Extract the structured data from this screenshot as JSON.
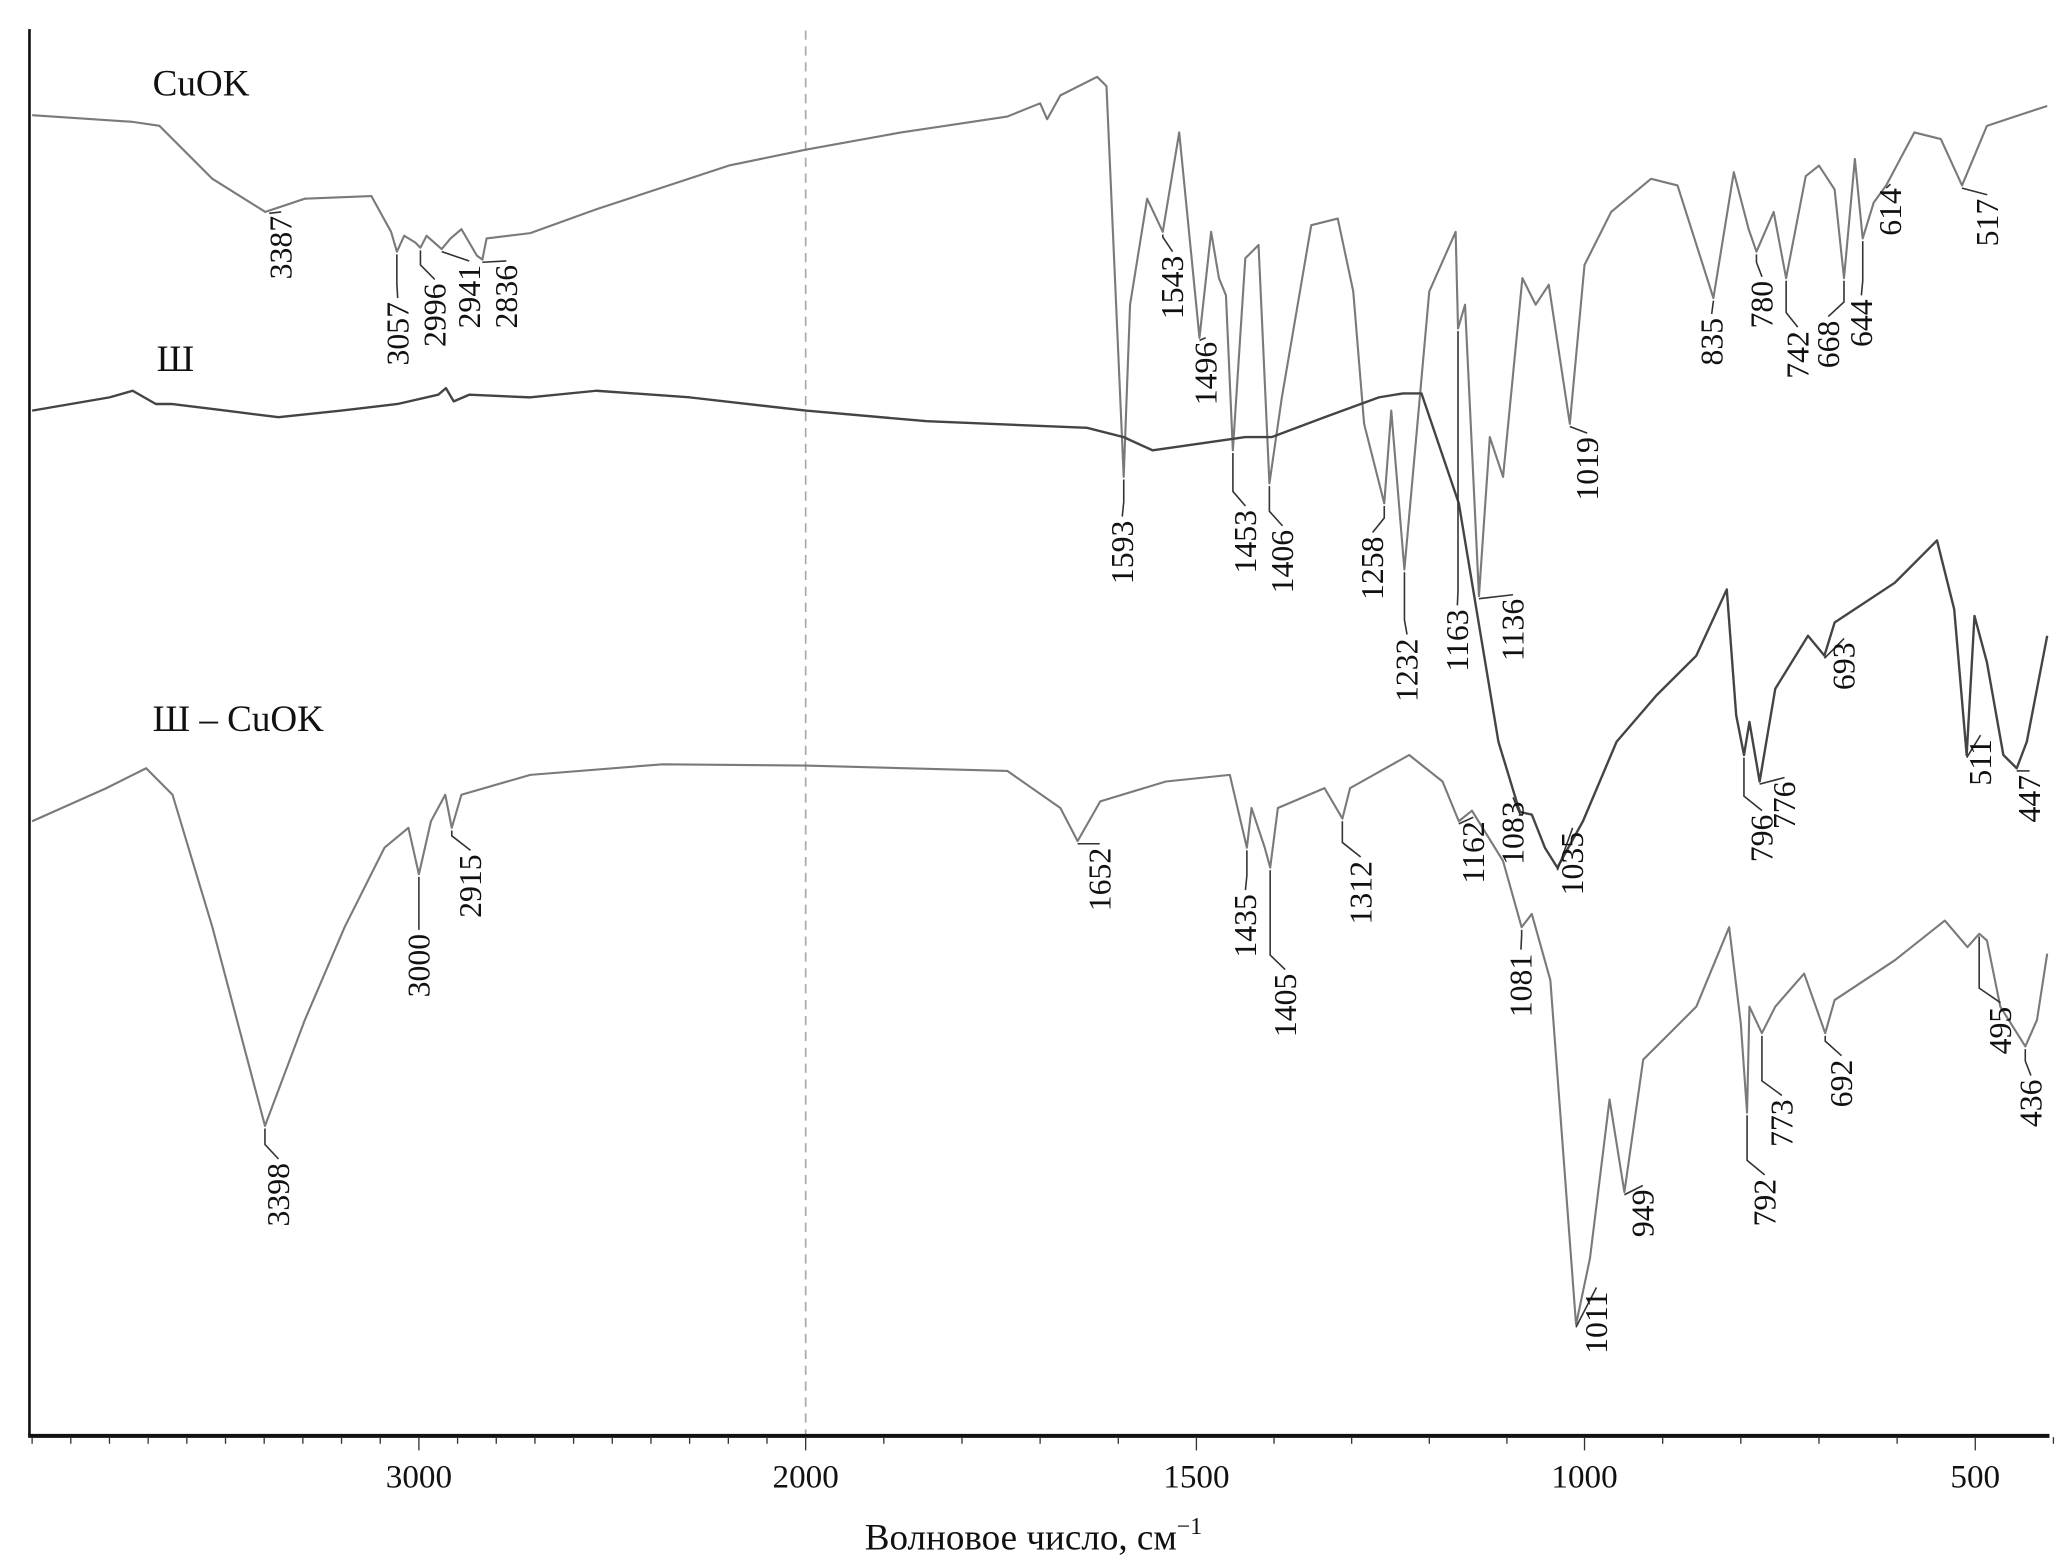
{
  "chart_data": {
    "type": "line",
    "title": "",
    "xlabel": "Волновое число, см",
    "xlabel_sup": "−1",
    "ylabel": "",
    "xlim": [
      4000,
      400
    ],
    "ylim": [
      0,
      106
    ],
    "x_scale": "split at 2000 cm-1 (expanded below 2000)",
    "grid": false,
    "reference_line": 2000,
    "xticks": [
      3000,
      2000,
      1500,
      1000,
      500
    ],
    "xtick_labels": [
      "3000",
      "2000",
      "1500",
      "1000",
      "500"
    ],
    "series": [
      {
        "name": "CuOK",
        "color": "#7a7a7a",
        "points": [
          [
            4000,
            99.6
          ],
          [
            3740,
            99.1
          ],
          [
            3671,
            98.8
          ],
          [
            3534,
            94.8
          ],
          [
            3397,
            92.3
          ],
          [
            3295,
            93.3
          ],
          [
            3123,
            93.5
          ],
          [
            3072,
            90.8
          ],
          [
            3057,
            89.3
          ],
          [
            3038,
            90.5
          ],
          [
            3010,
            90.0
          ],
          [
            2996,
            89.6
          ],
          [
            2980,
            90.5
          ],
          [
            2941,
            89.5
          ],
          [
            2918,
            90.3
          ],
          [
            2890,
            91.0
          ],
          [
            2850,
            89.0
          ],
          [
            2836,
            88.7
          ],
          [
            2825,
            90.3
          ],
          [
            2712,
            90.7
          ],
          [
            2541,
            92.5
          ],
          [
            2199,
            95.8
          ],
          [
            2000,
            97.0
          ],
          [
            1878,
            98.3
          ],
          [
            1742,
            99.5
          ],
          [
            1700,
            100.5
          ],
          [
            1691,
            99.3
          ],
          [
            1674,
            101.1
          ],
          [
            1627,
            102.5
          ],
          [
            1615,
            101.8
          ],
          [
            1593,
            72.3
          ],
          [
            1585,
            85.3
          ],
          [
            1563,
            93.3
          ],
          [
            1543,
            90.8
          ],
          [
            1522,
            98.3
          ],
          [
            1496,
            82.8
          ],
          [
            1481,
            90.8
          ],
          [
            1471,
            87.3
          ],
          [
            1462,
            86.0
          ],
          [
            1453,
            74.3
          ],
          [
            1437,
            88.8
          ],
          [
            1420,
            89.8
          ],
          [
            1406,
            71.8
          ],
          [
            1390,
            78.3
          ],
          [
            1352,
            91.3
          ],
          [
            1318,
            91.8
          ],
          [
            1298,
            86.3
          ],
          [
            1284,
            76.3
          ],
          [
            1258,
            70.3
          ],
          [
            1249,
            77.3
          ],
          [
            1232,
            65.3
          ],
          [
            1200,
            86.3
          ],
          [
            1166,
            90.8
          ],
          [
            1163,
            83.5
          ],
          [
            1154,
            85.3
          ],
          [
            1136,
            63.3
          ],
          [
            1122,
            75.3
          ],
          [
            1105,
            72.3
          ],
          [
            1080,
            87.3
          ],
          [
            1063,
            85.3
          ],
          [
            1046,
            86.8
          ],
          [
            1019,
            76.3
          ],
          [
            1000,
            88.3
          ],
          [
            966,
            92.3
          ],
          [
            915,
            94.8
          ],
          [
            881,
            94.3
          ],
          [
            835,
            85.8
          ],
          [
            809,
            95.3
          ],
          [
            790,
            91.0
          ],
          [
            780,
            89.3
          ],
          [
            758,
            92.3
          ],
          [
            742,
            87.3
          ],
          [
            717,
            95.0
          ],
          [
            700,
            95.8
          ],
          [
            680,
            94.0
          ],
          [
            668,
            87.3
          ],
          [
            654,
            96.3
          ],
          [
            644,
            90.3
          ],
          [
            630,
            93.0
          ],
          [
            614,
            94.3
          ],
          [
            578,
            98.3
          ],
          [
            544,
            97.8
          ],
          [
            517,
            94.3
          ],
          [
            485,
            98.8
          ],
          [
            434,
            99.8
          ],
          [
            408,
            100.3
          ]
        ]
      },
      {
        "name": "Ш",
        "color": "#444444",
        "points": [
          [
            4000,
            77.3
          ],
          [
            3900,
            77.8
          ],
          [
            3800,
            78.3
          ],
          [
            3740,
            78.8
          ],
          [
            3680,
            77.8
          ],
          [
            3640,
            77.8
          ],
          [
            3500,
            77.3
          ],
          [
            3363,
            76.8
          ],
          [
            3200,
            77.3
          ],
          [
            3055,
            77.8
          ],
          [
            2950,
            78.5
          ],
          [
            2930,
            79.0
          ],
          [
            2910,
            78.0
          ],
          [
            2870,
            78.5
          ],
          [
            2712,
            78.3
          ],
          [
            2541,
            78.8
          ],
          [
            2300,
            78.3
          ],
          [
            2000,
            77.3
          ],
          [
            1845,
            76.5
          ],
          [
            1640,
            76.0
          ],
          [
            1593,
            75.3
          ],
          [
            1556,
            74.3
          ],
          [
            1437,
            75.3
          ],
          [
            1403,
            75.3
          ],
          [
            1335,
            76.8
          ],
          [
            1265,
            78.3
          ],
          [
            1234,
            78.6
          ],
          [
            1210,
            78.6
          ],
          [
            1162,
            70.3
          ],
          [
            1111,
            52.3
          ],
          [
            1085,
            47.3
          ],
          [
            1083,
            47.0
          ],
          [
            1068,
            46.8
          ],
          [
            1051,
            44.3
          ],
          [
            1035,
            42.8
          ],
          [
            1002,
            46.3
          ],
          [
            959,
            52.3
          ],
          [
            908,
            55.8
          ],
          [
            857,
            58.8
          ],
          [
            818,
            63.8
          ],
          [
            806,
            54.3
          ],
          [
            796,
            51.3
          ],
          [
            789,
            53.8
          ],
          [
            776,
            49.3
          ],
          [
            756,
            56.3
          ],
          [
            714,
            60.3
          ],
          [
            693,
            58.8
          ],
          [
            680,
            61.3
          ],
          [
            603,
            64.3
          ],
          [
            549,
            67.5
          ],
          [
            527,
            62.3
          ],
          [
            511,
            51.3
          ],
          [
            501,
            61.8
          ],
          [
            485,
            58.3
          ],
          [
            464,
            51.3
          ],
          [
            447,
            50.3
          ],
          [
            434,
            52.3
          ],
          [
            408,
            60.3
          ]
        ]
      },
      {
        "name": "Ш – CuOK",
        "color": "#7a7a7a",
        "points": [
          [
            4000,
            46.3
          ],
          [
            3808,
            48.8
          ],
          [
            3705,
            50.3
          ],
          [
            3637,
            48.3
          ],
          [
            3534,
            38.3
          ],
          [
            3398,
            23.3
          ],
          [
            3295,
            31.3
          ],
          [
            3192,
            38.3
          ],
          [
            3089,
            44.3
          ],
          [
            3027,
            45.8
          ],
          [
            3000,
            42.3
          ],
          [
            2969,
            46.3
          ],
          [
            2932,
            48.3
          ],
          [
            2915,
            45.8
          ],
          [
            2890,
            48.3
          ],
          [
            2712,
            49.8
          ],
          [
            2370,
            50.6
          ],
          [
            2000,
            50.5
          ],
          [
            1742,
            50.1
          ],
          [
            1674,
            47.3
          ],
          [
            1652,
            44.8
          ],
          [
            1623,
            47.8
          ],
          [
            1539,
            49.3
          ],
          [
            1457,
            49.8
          ],
          [
            1435,
            44.3
          ],
          [
            1429,
            47.3
          ],
          [
            1412,
            44.3
          ],
          [
            1405,
            42.8
          ],
          [
            1395,
            47.3
          ],
          [
            1335,
            48.8
          ],
          [
            1312,
            46.5
          ],
          [
            1302,
            48.8
          ],
          [
            1226,
            51.3
          ],
          [
            1183,
            49.3
          ],
          [
            1162,
            46.3
          ],
          [
            1145,
            47.1
          ],
          [
            1105,
            43.3
          ],
          [
            1081,
            38.3
          ],
          [
            1068,
            39.3
          ],
          [
            1044,
            34.3
          ],
          [
            1011,
            8.3
          ],
          [
            993,
            13.3
          ],
          [
            968,
            25.3
          ],
          [
            949,
            18.3
          ],
          [
            925,
            28.3
          ],
          [
            857,
            32.3
          ],
          [
            815,
            38.3
          ],
          [
            800,
            31.0
          ],
          [
            792,
            24.3
          ],
          [
            789,
            32.3
          ],
          [
            773,
            30.3
          ],
          [
            756,
            32.3
          ],
          [
            719,
            34.8
          ],
          [
            692,
            30.3
          ],
          [
            680,
            32.8
          ],
          [
            603,
            35.8
          ],
          [
            539,
            38.8
          ],
          [
            510,
            36.8
          ],
          [
            495,
            37.8
          ],
          [
            485,
            37.3
          ],
          [
            468,
            32.3
          ],
          [
            436,
            29.3
          ],
          [
            421,
            31.3
          ],
          [
            408,
            36.3
          ]
        ]
      }
    ],
    "annotations": [
      {
        "series": 0,
        "label": "3387",
        "x": 3387
      },
      {
        "series": 0,
        "label": "3057",
        "x": 3057
      },
      {
        "series": 0,
        "label": "2996",
        "x": 2996
      },
      {
        "series": 0,
        "label": "2941",
        "x": 2941
      },
      {
        "series": 0,
        "label": "2836",
        "x": 2836
      },
      {
        "series": 0,
        "label": "1593",
        "x": 1593
      },
      {
        "series": 0,
        "label": "1543",
        "x": 1543
      },
      {
        "series": 0,
        "label": "1496",
        "x": 1496
      },
      {
        "series": 0,
        "label": "1453",
        "x": 1453
      },
      {
        "series": 0,
        "label": "1406",
        "x": 1406
      },
      {
        "series": 0,
        "label": "1258",
        "x": 1258
      },
      {
        "series": 0,
        "label": "1232",
        "x": 1232
      },
      {
        "series": 0,
        "label": "1163",
        "x": 1163
      },
      {
        "series": 0,
        "label": "1136",
        "x": 1136
      },
      {
        "series": 0,
        "label": "1019",
        "x": 1019
      },
      {
        "series": 0,
        "label": "835",
        "x": 835
      },
      {
        "series": 0,
        "label": "780",
        "x": 780
      },
      {
        "series": 0,
        "label": "742",
        "x": 742
      },
      {
        "series": 0,
        "label": "668",
        "x": 668
      },
      {
        "series": 0,
        "label": "644",
        "x": 644
      },
      {
        "series": 0,
        "label": "614",
        "x": 614
      },
      {
        "series": 0,
        "label": "517",
        "x": 517
      },
      {
        "series": 1,
        "label": "1083",
        "x": 1083
      },
      {
        "series": 1,
        "label": "1035",
        "x": 1035
      },
      {
        "series": 1,
        "label": "796",
        "x": 796
      },
      {
        "series": 1,
        "label": "776",
        "x": 776
      },
      {
        "series": 1,
        "label": "693",
        "x": 693
      },
      {
        "series": 1,
        "label": "511",
        "x": 511
      },
      {
        "series": 1,
        "label": "447",
        "x": 447
      },
      {
        "series": 2,
        "label": "3398",
        "x": 3398
      },
      {
        "series": 2,
        "label": "3000",
        "x": 3000
      },
      {
        "series": 2,
        "label": "2915",
        "x": 2915
      },
      {
        "series": 2,
        "label": "1652",
        "x": 1652
      },
      {
        "series": 2,
        "label": "1435",
        "x": 1435
      },
      {
        "series": 2,
        "label": "1405",
        "x": 1405
      },
      {
        "series": 2,
        "label": "1312",
        "x": 1312
      },
      {
        "series": 2,
        "label": "1162",
        "x": 1162
      },
      {
        "series": 2,
        "label": "1081",
        "x": 1081
      },
      {
        "series": 2,
        "label": "1011",
        "x": 1011
      },
      {
        "series": 2,
        "label": "949",
        "x": 949
      },
      {
        "series": 2,
        "label": "792",
        "x": 792
      },
      {
        "series": 2,
        "label": "773",
        "x": 773
      },
      {
        "series": 2,
        "label": "692",
        "x": 692
      },
      {
        "series": 2,
        "label": "495",
        "x": 495
      },
      {
        "series": 2,
        "label": "436",
        "x": 436
      }
    ]
  }
}
